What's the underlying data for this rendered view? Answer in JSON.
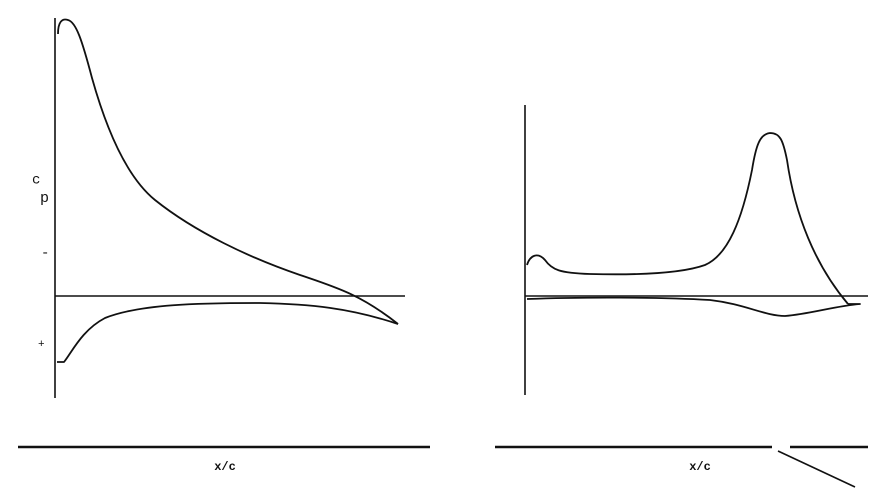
{
  "left_panel": {
    "y_label": "c",
    "y_label_sub": "p",
    "minus_sign": "-",
    "plus_sign": "+",
    "x_label": "x/c"
  },
  "right_panel": {
    "x_label": "x/c"
  }
}
